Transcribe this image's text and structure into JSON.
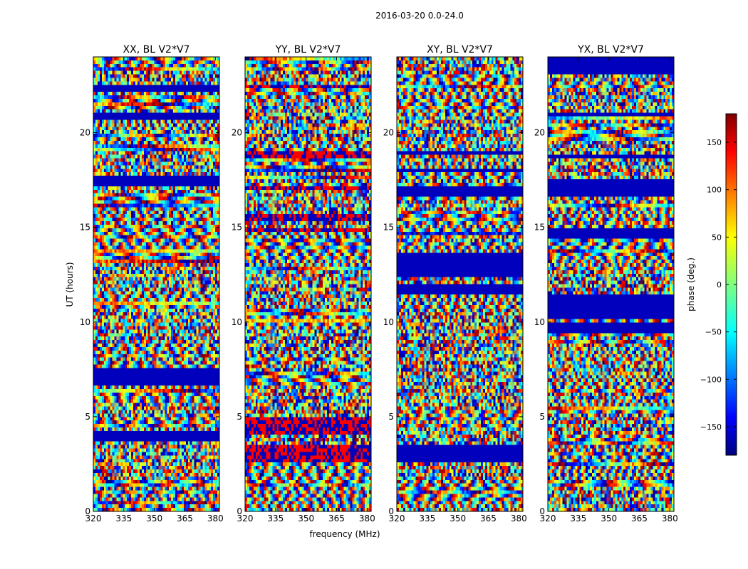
{
  "figure": {
    "suptitle": "2016-03-20 0.0-24.0"
  },
  "chart_data": {
    "type": "heatmap",
    "title": "2016-03-20 0.0-24.0",
    "xlabel": "frequency (MHz)",
    "ylabel": "UT (hours)",
    "xlim": [
      320,
      382
    ],
    "ylim": [
      0,
      24
    ],
    "xticks": [
      "320",
      "335",
      "350",
      "365",
      "380"
    ],
    "yticks": [
      "0",
      "5",
      "10",
      "15",
      "20"
    ],
    "panels": [
      {
        "title": "XX, BL V2*V7"
      },
      {
        "title": "YY, BL V2*V7"
      },
      {
        "title": "XY, BL V2*V7"
      },
      {
        "title": "YX, BL V2*V7"
      }
    ],
    "colorbar": {
      "label": "phase (deg.)",
      "range": [
        -180,
        180
      ],
      "ticks": [
        "150",
        "100",
        "50",
        "0",
        "−50",
        "−100",
        "−150"
      ],
      "colormap": "jet",
      "colors": [
        "#00007f",
        "#0000ff",
        "#00ffff",
        "#7fff7f",
        "#ffff00",
        "#ff0000",
        "#7f0000"
      ]
    }
  }
}
